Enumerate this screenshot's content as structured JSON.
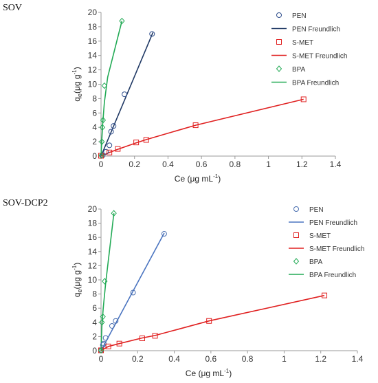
{
  "chart_data": [
    {
      "type": "scatter",
      "panel_label": "SOV",
      "xlabel": "Ce (μg mL",
      "xlabel_sup": "-1",
      "xlabel_close": ")",
      "ylabel": "q",
      "ylabel_sub": "e",
      "ylabel_rest": "(μg g",
      "ylabel_sup": "-1",
      "ylabel_close": ")",
      "xlim": [
        0,
        1.4
      ],
      "ylim": [
        0,
        20
      ],
      "xticks": [
        "0",
        "0.2",
        "0.4",
        "0.6",
        "0.8",
        "1",
        "1.2",
        "1.4"
      ],
      "yticks": [
        "0",
        "2",
        "4",
        "6",
        "8",
        "10",
        "12",
        "14",
        "16",
        "18",
        "20"
      ],
      "legend_position": "top-right",
      "series": [
        {
          "name": "PEN",
          "kind": "points",
          "marker": "circle",
          "color": "#2e4d8c",
          "x": [
            0.01,
            0.03,
            0.05,
            0.06,
            0.075,
            0.14,
            0.305
          ],
          "y": [
            0.1,
            0.6,
            1.5,
            3.4,
            4.2,
            8.6,
            17.0
          ]
        },
        {
          "name": "PEN Freundlich",
          "kind": "line",
          "color": "#1f3864",
          "x": [
            0,
            0.31
          ],
          "y": [
            0,
            17.2
          ]
        },
        {
          "name": "S-MET",
          "kind": "points",
          "marker": "square",
          "color": "#e02020",
          "x": [
            0.0,
            0.05,
            0.1,
            0.21,
            0.27,
            0.565,
            1.21
          ],
          "y": [
            0.05,
            0.5,
            1.0,
            1.9,
            2.25,
            4.3,
            7.9
          ]
        },
        {
          "name": "S-MET Freundlich",
          "kind": "line",
          "color": "#e02020",
          "x": [
            0,
            0.05,
            0.1,
            0.21,
            0.27,
            0.565,
            1.21
          ],
          "y": [
            0,
            0.5,
            0.95,
            1.85,
            2.3,
            4.3,
            7.9
          ]
        },
        {
          "name": "BPA",
          "kind": "points",
          "marker": "diamond",
          "color": "#22aa55",
          "x": [
            0.002,
            0.005,
            0.008,
            0.012,
            0.02,
            0.125
          ],
          "y": [
            0.1,
            2.0,
            4.0,
            5.0,
            9.8,
            18.8
          ]
        },
        {
          "name": "BPA Freundlich",
          "kind": "line",
          "color": "#22aa55",
          "x": [
            0,
            0.004,
            0.01,
            0.02,
            0.04,
            0.125
          ],
          "y": [
            0,
            2.0,
            4.5,
            7.5,
            11.0,
            18.8
          ]
        }
      ]
    },
    {
      "type": "scatter",
      "panel_label": "SOV-DCP2",
      "xlabel": "Ce (μg mL",
      "xlabel_sup": "-1",
      "xlabel_close": ")",
      "ylabel": "q",
      "ylabel_sub": "e",
      "ylabel_rest": "(μg g",
      "ylabel_sup": "-1",
      "ylabel_close": ")",
      "xlim": [
        0,
        1.4
      ],
      "ylim": [
        0,
        20
      ],
      "xticks": [
        "0",
        "0.2",
        "0.4",
        "0.6",
        "0.8",
        "1",
        "1.2",
        "1.4"
      ],
      "yticks": [
        "0",
        "2",
        "4",
        "6",
        "8",
        "10",
        "12",
        "14",
        "16",
        "18",
        "20"
      ],
      "legend_position": "top-right",
      "series": [
        {
          "name": "PEN",
          "kind": "points",
          "marker": "circle",
          "color": "#4a6fb0",
          "x": [
            0.0,
            0.01,
            0.015,
            0.025,
            0.06,
            0.08,
            0.175,
            0.345
          ],
          "y": [
            0.05,
            0.8,
            1.0,
            1.8,
            3.5,
            4.2,
            8.2,
            16.5
          ]
        },
        {
          "name": "PEN Freundlich",
          "kind": "line",
          "color": "#4a74c0",
          "x": [
            0,
            0.345
          ],
          "y": [
            0,
            16.6
          ]
        },
        {
          "name": "S-MET",
          "kind": "points",
          "marker": "square",
          "color": "#e02020",
          "x": [
            0.0,
            0.04,
            0.1,
            0.225,
            0.295,
            0.59,
            1.22
          ],
          "y": [
            0.05,
            0.6,
            1.0,
            1.75,
            2.1,
            4.2,
            7.8
          ]
        },
        {
          "name": "S-MET Freundlich",
          "kind": "line",
          "color": "#e02020",
          "x": [
            0,
            0.04,
            0.1,
            0.225,
            0.295,
            0.59,
            1.22
          ],
          "y": [
            0,
            0.6,
            1.0,
            1.8,
            2.15,
            4.2,
            7.8
          ]
        },
        {
          "name": "BPA",
          "kind": "points",
          "marker": "diamond",
          "color": "#22aa55",
          "x": [
            0.0,
            0.005,
            0.01,
            0.02,
            0.07
          ],
          "y": [
            0.05,
            4.0,
            4.8,
            9.8,
            19.4
          ]
        },
        {
          "name": "BPA Freundlich",
          "kind": "line",
          "color": "#22aa55",
          "x": [
            0,
            0.005,
            0.012,
            0.025,
            0.07
          ],
          "y": [
            0,
            3.5,
            6.0,
            9.5,
            19.4
          ]
        }
      ]
    }
  ]
}
